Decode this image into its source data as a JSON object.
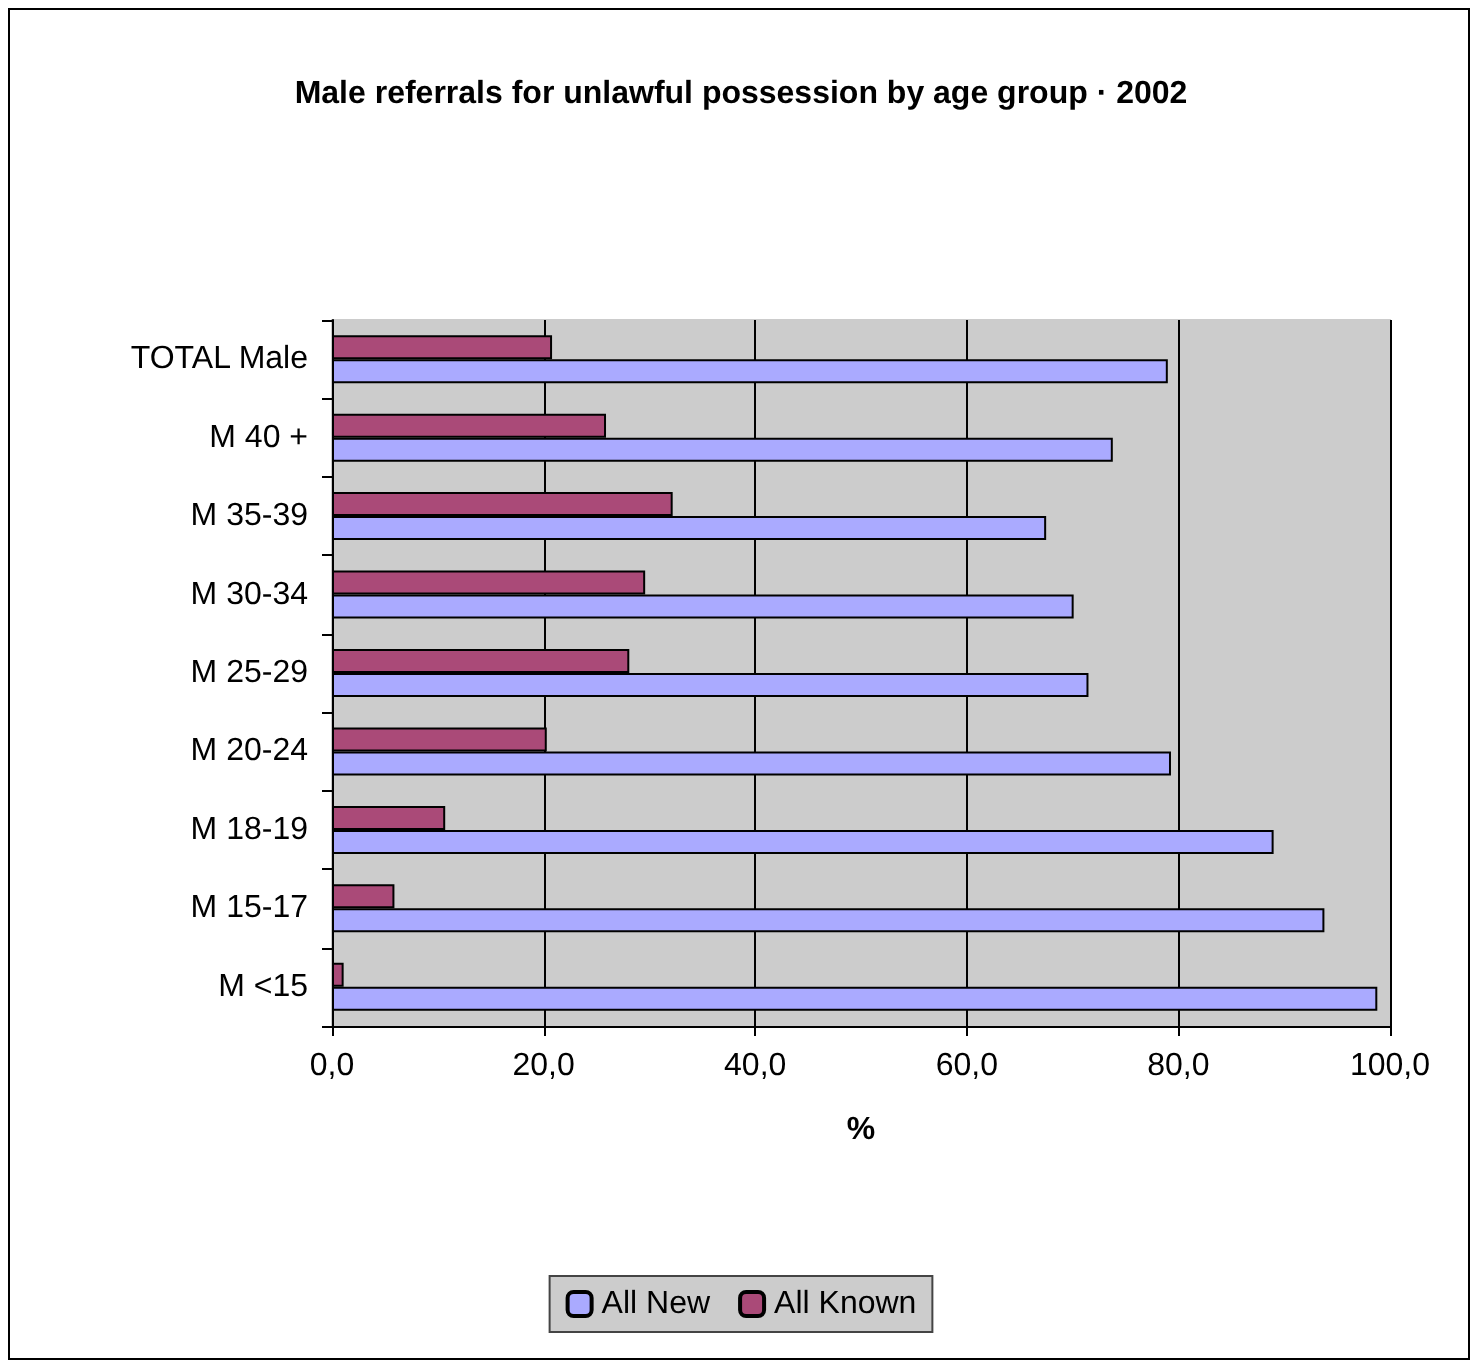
{
  "chart_data": {
    "type": "bar",
    "orientation": "horizontal",
    "title": "Male referrals for unlawful possession by age group · 2002",
    "xlabel": "%",
    "categories": [
      "TOTAL Male",
      "M 40 +",
      "M 35-39",
      "M 30-34",
      "M 25-29",
      "M 20-24",
      "M 18-19",
      "M 15-17",
      "M <15"
    ],
    "series": [
      {
        "name": "All New",
        "color": "#aaaaff",
        "values": [
          79.0,
          73.8,
          67.5,
          70.1,
          71.5,
          79.3,
          89.0,
          93.8,
          98.8
        ]
      },
      {
        "name": "All Known",
        "color": "#aa4a78",
        "values": [
          20.8,
          25.9,
          32.2,
          29.6,
          28.1,
          20.3,
          10.7,
          5.9,
          1.1
        ]
      }
    ],
    "xlim": [
      0,
      100
    ],
    "xticks": [
      {
        "value": 0,
        "label": "0,0"
      },
      {
        "value": 20,
        "label": "20,0"
      },
      {
        "value": 40,
        "label": "40,0"
      },
      {
        "value": 60,
        "label": "60,0"
      },
      {
        "value": 80,
        "label": "80,0"
      },
      {
        "value": 100,
        "label": "100,0"
      }
    ],
    "grid": "x",
    "legend": "bottom"
  }
}
